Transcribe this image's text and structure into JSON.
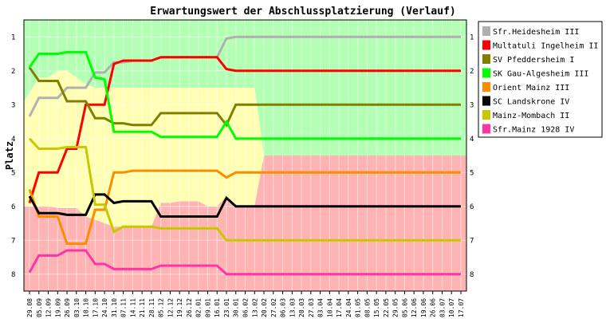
{
  "chart_data": {
    "type": "line",
    "title": "Erwartungswert der Abschlussplatzierung (Verlauf)",
    "ylabel": "Platz",
    "xlabel": "",
    "y_ticks": [
      1,
      2,
      3,
      4,
      5,
      6,
      7,
      8
    ],
    "ylim": [
      0.5,
      8.5
    ],
    "y_inverted": true,
    "categories": [
      "29.08",
      "05.09",
      "12.09",
      "19.09",
      "26.09",
      "03.10",
      "10.10",
      "17.10",
      "24.10",
      "31.10",
      "07.11",
      "14.11",
      "21.11",
      "28.11",
      "05.12",
      "12.12",
      "19.12",
      "26.12",
      "02.01",
      "09.01",
      "16.01",
      "23.01",
      "30.01",
      "06.02",
      "13.02",
      "20.02",
      "27.02",
      "06.03",
      "13.03",
      "20.03",
      "27.03",
      "03.04",
      "10.04",
      "17.04",
      "24.04",
      "01.05",
      "08.05",
      "15.05",
      "22.05",
      "29.05",
      "05.06",
      "12.06",
      "19.06",
      "26.06",
      "03.07",
      "10.07",
      "17.07"
    ],
    "zones": [
      {
        "name": "green",
        "color": "#b3ffb3",
        "top": [
          0.5,
          0.5,
          0.5,
          0.5,
          0.5,
          0.5,
          0.5,
          0.5,
          0.5,
          0.5,
          0.5,
          0.5,
          0.5,
          0.5,
          0.5,
          0.5,
          0.5,
          0.5,
          0.5,
          0.5,
          0.5,
          0.5,
          0.5,
          0.5,
          0.5,
          0.5,
          0.5,
          0.5,
          0.5,
          0.5,
          0.5,
          0.5,
          0.5,
          0.5,
          0.5,
          0.5,
          0.5,
          0.5,
          0.5,
          0.5,
          0.5,
          0.5,
          0.5,
          0.5,
          0.5,
          0.5,
          0.5
        ]
      },
      {
        "name": "yellow",
        "color": "#ffffb3",
        "top": [
          2.9,
          2.2,
          2.2,
          2.0,
          2.0,
          2.2,
          2.4,
          2.5,
          2.5,
          2.5,
          2.5,
          2.5,
          2.5,
          2.5,
          2.5,
          2.5,
          2.5,
          2.5,
          2.5,
          2.5,
          2.5,
          2.5,
          2.5,
          2.5,
          2.5,
          4.5,
          4.5,
          4.5,
          4.5,
          4.5,
          4.5,
          4.5,
          4.5,
          4.5,
          4.5,
          4.5,
          4.5,
          4.5,
          4.5,
          4.5,
          4.5,
          4.5,
          4.5,
          4.5,
          4.5,
          4.5,
          4.5
        ]
      },
      {
        "name": "red",
        "color": "#ffb3b3",
        "top": [
          6.0,
          6.0,
          6.0,
          6.05,
          6.05,
          6.05,
          6.3,
          6.4,
          6.5,
          6.6,
          6.6,
          6.6,
          6.6,
          6.6,
          5.9,
          5.9,
          5.85,
          5.85,
          5.85,
          6.0,
          6.0,
          5.7,
          6.0,
          6.0,
          6.0,
          4.5,
          4.5,
          4.5,
          4.5,
          4.5,
          4.5,
          4.5,
          4.5,
          4.5,
          4.5,
          4.5,
          4.5,
          4.5,
          4.5,
          4.5,
          4.5,
          4.5,
          4.5,
          4.5,
          4.5,
          4.5,
          4.5
        ]
      }
    ],
    "series": [
      {
        "name": "Sfr.Heidesheim III",
        "color": "#b0b0b0",
        "values": [
          3.35,
          2.8,
          2.8,
          2.8,
          2.5,
          2.5,
          2.5,
          2.05,
          2.05,
          1.75,
          1.75,
          1.7,
          1.7,
          1.7,
          1.6,
          1.6,
          1.6,
          1.6,
          1.6,
          1.6,
          1.6,
          1.05,
          1.0,
          1.0,
          1.0,
          1.0,
          1.0,
          1.0,
          1.0,
          1.0,
          1.0,
          1.0,
          1.0,
          1.0,
          1.0,
          1.0,
          1.0,
          1.0,
          1.0,
          1.0,
          1.0,
          1.0,
          1.0,
          1.0,
          1.0,
          1.0,
          1.0
        ]
      },
      {
        "name": "Multatuli Ingelheim II",
        "color": "#ff0000",
        "values": [
          5.9,
          5.0,
          5.0,
          5.0,
          4.3,
          4.3,
          3.0,
          3.0,
          3.0,
          1.8,
          1.7,
          1.7,
          1.7,
          1.7,
          1.6,
          1.6,
          1.6,
          1.6,
          1.6,
          1.6,
          1.6,
          1.95,
          2.0,
          2.0,
          2.0,
          2.0,
          2.0,
          2.0,
          2.0,
          2.0,
          2.0,
          2.0,
          2.0,
          2.0,
          2.0,
          2.0,
          2.0,
          2.0,
          2.0,
          2.0,
          2.0,
          2.0,
          2.0,
          2.0,
          2.0,
          2.0,
          2.0
        ]
      },
      {
        "name": "SV Pfeddersheim I",
        "color": "#808000",
        "values": [
          1.9,
          2.3,
          2.3,
          2.3,
          2.9,
          2.9,
          2.9,
          3.4,
          3.4,
          3.55,
          3.55,
          3.6,
          3.6,
          3.6,
          3.25,
          3.25,
          3.25,
          3.25,
          3.25,
          3.25,
          3.25,
          3.6,
          3.0,
          3.0,
          3.0,
          3.0,
          3.0,
          3.0,
          3.0,
          3.0,
          3.0,
          3.0,
          3.0,
          3.0,
          3.0,
          3.0,
          3.0,
          3.0,
          3.0,
          3.0,
          3.0,
          3.0,
          3.0,
          3.0,
          3.0,
          3.0,
          3.0
        ]
      },
      {
        "name": "SK Gau-Algesheim III",
        "color": "#00ff00",
        "values": [
          1.9,
          1.5,
          1.5,
          1.5,
          1.45,
          1.45,
          1.45,
          2.2,
          2.25,
          3.8,
          3.8,
          3.8,
          3.8,
          3.8,
          3.95,
          3.95,
          3.95,
          3.95,
          3.95,
          3.95,
          3.95,
          3.5,
          4.0,
          4.0,
          4.0,
          4.0,
          4.0,
          4.0,
          4.0,
          4.0,
          4.0,
          4.0,
          4.0,
          4.0,
          4.0,
          4.0,
          4.0,
          4.0,
          4.0,
          4.0,
          4.0,
          4.0,
          4.0,
          4.0,
          4.0,
          4.0,
          4.0
        ]
      },
      {
        "name": "Orient Mainz III",
        "color": "#ff8c00",
        "values": [
          5.5,
          6.3,
          6.3,
          6.3,
          7.1,
          7.1,
          7.1,
          6.1,
          6.1,
          5.0,
          5.0,
          4.95,
          4.95,
          4.95,
          4.95,
          4.95,
          4.95,
          4.95,
          4.95,
          4.95,
          4.95,
          5.15,
          5.0,
          5.0,
          5.0,
          5.0,
          5.0,
          5.0,
          5.0,
          5.0,
          5.0,
          5.0,
          5.0,
          5.0,
          5.0,
          5.0,
          5.0,
          5.0,
          5.0,
          5.0,
          5.0,
          5.0,
          5.0,
          5.0,
          5.0,
          5.0,
          5.0
        ]
      },
      {
        "name": "SC Landskrone IV",
        "color": "#000000",
        "values": [
          5.7,
          6.2,
          6.2,
          6.2,
          6.25,
          6.25,
          6.25,
          5.65,
          5.65,
          5.9,
          5.85,
          5.85,
          5.85,
          5.85,
          6.3,
          6.3,
          6.3,
          6.3,
          6.3,
          6.3,
          6.3,
          5.75,
          6.0,
          6.0,
          6.0,
          6.0,
          6.0,
          6.0,
          6.0,
          6.0,
          6.0,
          6.0,
          6.0,
          6.0,
          6.0,
          6.0,
          6.0,
          6.0,
          6.0,
          6.0,
          6.0,
          6.0,
          6.0,
          6.0,
          6.0,
          6.0,
          6.0
        ]
      },
      {
        "name": "Mainz-Mombach II",
        "color": "#c8c800",
        "values": [
          4.0,
          4.3,
          4.3,
          4.3,
          4.25,
          4.25,
          4.25,
          5.95,
          5.95,
          6.75,
          6.6,
          6.6,
          6.6,
          6.6,
          6.65,
          6.65,
          6.65,
          6.65,
          6.65,
          6.65,
          6.65,
          7.0,
          7.0,
          7.0,
          7.0,
          7.0,
          7.0,
          7.0,
          7.0,
          7.0,
          7.0,
          7.0,
          7.0,
          7.0,
          7.0,
          7.0,
          7.0,
          7.0,
          7.0,
          7.0,
          7.0,
          7.0,
          7.0,
          7.0,
          7.0,
          7.0,
          7.0
        ]
      },
      {
        "name": "Sfr.Mainz 1928 IV",
        "color": "#ff33aa",
        "values": [
          7.95,
          7.45,
          7.45,
          7.45,
          7.3,
          7.3,
          7.3,
          7.7,
          7.7,
          7.85,
          7.85,
          7.85,
          7.85,
          7.85,
          7.75,
          7.75,
          7.75,
          7.75,
          7.75,
          7.75,
          7.75,
          8.0,
          8.0,
          8.0,
          8.0,
          8.0,
          8.0,
          8.0,
          8.0,
          8.0,
          8.0,
          8.0,
          8.0,
          8.0,
          8.0,
          8.0,
          8.0,
          8.0,
          8.0,
          8.0,
          8.0,
          8.0,
          8.0,
          8.0,
          8.0,
          8.0,
          8.0
        ]
      }
    ],
    "legend_position": "right"
  }
}
